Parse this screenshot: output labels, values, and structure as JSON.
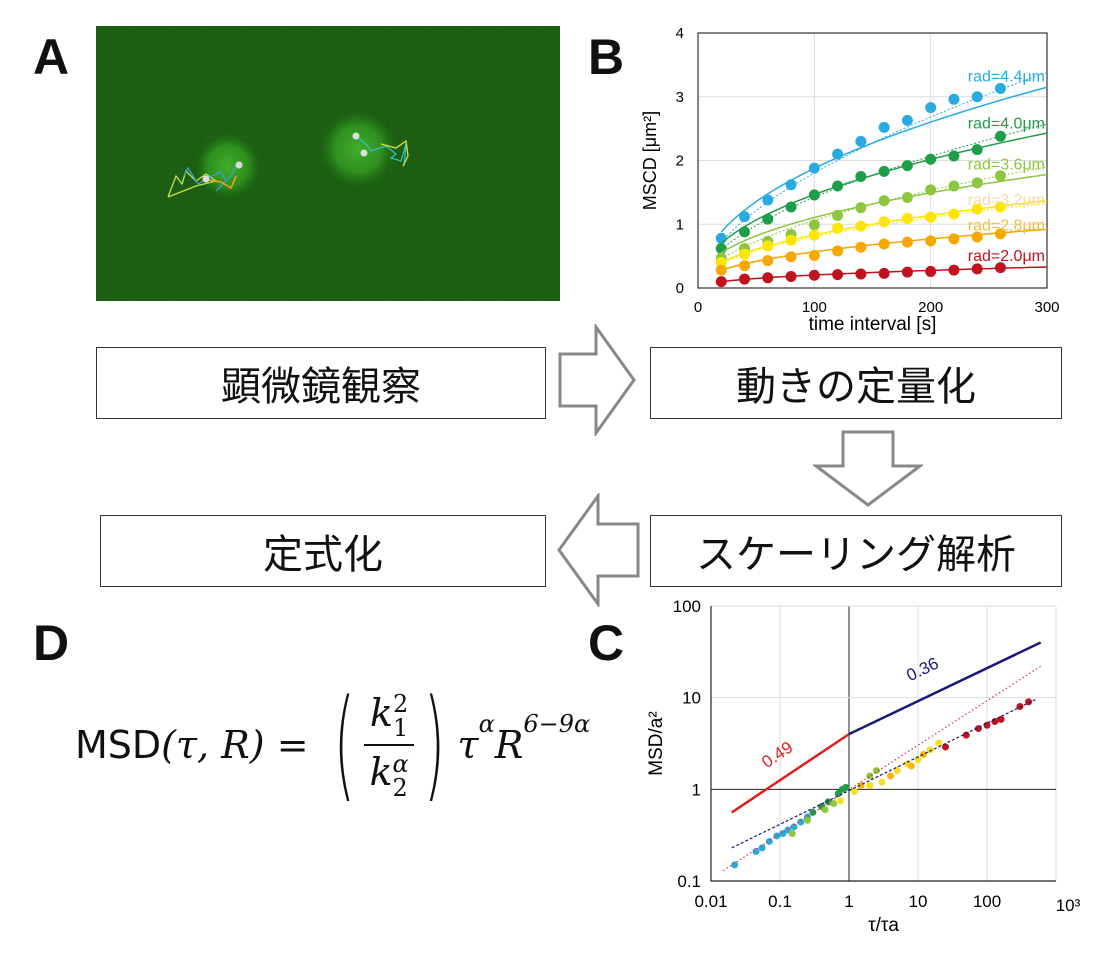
{
  "panels": {
    "a": "A",
    "b": "B",
    "c": "C",
    "d": "D"
  },
  "flow": {
    "step1": "顕微鏡観察",
    "step2": "動きの定量化",
    "step3": "スケーリング解析",
    "step4": "定式化"
  },
  "icons": {
    "arrow1": "arrow-right-icon",
    "arrow2": "arrow-down-icon",
    "arrow3": "arrow-left-icon"
  },
  "equation": {
    "lhs": "MSD",
    "args": "(τ, R)",
    "eq": " = ",
    "k1": "k",
    "k1_sub": "1",
    "k1_sup": "2",
    "k2": "k",
    "k2_sub": "2",
    "k2_sup": "α",
    "tau": "τ",
    "tau_sup": "α",
    "R": "R",
    "R_sup": "6−9α"
  },
  "chart_data": [
    {
      "type": "scatter",
      "ylabel": "MSCD [μm²]",
      "xlabel": "time interval [s]",
      "xlim": [
        0,
        300
      ],
      "ylim": [
        0,
        4
      ],
      "xticks": [
        0,
        100,
        200,
        300
      ],
      "yticks": [
        0,
        1,
        2,
        3,
        4
      ],
      "grid": true,
      "x": [
        20,
        40,
        60,
        80,
        100,
        120,
        140,
        160,
        180,
        200,
        220,
        240,
        260
      ],
      "series": [
        {
          "name": "rad=4.4μm",
          "color": "#29abe2",
          "label_color": "#29abe2",
          "values": [
            0.78,
            1.12,
            1.38,
            1.62,
            1.88,
            2.1,
            2.3,
            2.52,
            2.63,
            2.83,
            2.96,
            3.0,
            3.13
          ],
          "fit": [
            0.88,
            3.15
          ],
          "fit_dotted": [
            0.72,
            3.38
          ]
        },
        {
          "name": "rad=4.0μm",
          "color": "#1f9e4a",
          "label_color": "#1f9e4a",
          "values": [
            0.62,
            0.88,
            1.08,
            1.27,
            1.46,
            1.6,
            1.75,
            1.83,
            1.92,
            2.02,
            2.07,
            2.17,
            2.38
          ],
          "fit": [
            0.7,
            2.43
          ],
          "fit_dotted": [
            0.6,
            2.57
          ]
        },
        {
          "name": "rad=3.6μm",
          "color": "#8dc63f",
          "label_color": "#8dc63f",
          "values": [
            0.47,
            0.62,
            0.73,
            0.84,
            0.99,
            1.14,
            1.26,
            1.37,
            1.42,
            1.54,
            1.6,
            1.65,
            1.76
          ],
          "fit": [
            0.55,
            1.78
          ],
          "fit_dotted": [
            0.45,
            1.9
          ]
        },
        {
          "name": "rad=3.2μm",
          "color": "#ffe600",
          "label_color": "#f6d9a6",
          "values": [
            0.4,
            0.53,
            0.66,
            0.75,
            0.83,
            0.94,
            0.97,
            1.04,
            1.09,
            1.11,
            1.16,
            1.24,
            1.27
          ],
          "fit": [
            0.4,
            1.37
          ],
          "fit_dotted": [
            0.38,
            1.33
          ]
        },
        {
          "name": "rad=2.8μm",
          "color": "#f7a800",
          "label_color": "#f0c040",
          "values": [
            0.28,
            0.35,
            0.43,
            0.49,
            0.51,
            0.58,
            0.64,
            0.69,
            0.72,
            0.74,
            0.77,
            0.8,
            0.85
          ],
          "fit": [
            0.28,
            0.92
          ],
          "fit_dotted": [
            0.27,
            0.93
          ]
        },
        {
          "name": "rad=2.0μm",
          "color": "#c1121f",
          "label_color": "#c1121f",
          "values": [
            0.1,
            0.14,
            0.16,
            0.18,
            0.2,
            0.21,
            0.22,
            0.23,
            0.25,
            0.26,
            0.28,
            0.3,
            0.32
          ],
          "fit": [
            0.1,
            0.33
          ],
          "fit_dotted": [
            0.1,
            0.33
          ]
        }
      ]
    },
    {
      "type": "scatter",
      "scale": "log-log",
      "ylabel": "MSD/a²",
      "xlabel": "τ/τa",
      "xlim": [
        0.01,
        1000
      ],
      "ylim": [
        0.1,
        100
      ],
      "xticks": [
        "0.01",
        "0.1",
        "1",
        "10",
        "100",
        "10³"
      ],
      "yticks": [
        "0.1",
        "1",
        "10",
        "100"
      ],
      "grid": true,
      "lines": [
        {
          "label": "0.49",
          "color": "#e02020",
          "style": "solid",
          "from": [
            0.02,
            0.56
          ],
          "to": [
            1,
            4
          ]
        },
        {
          "label": "0.36",
          "color": "#1a1a7a",
          "style": "solid",
          "from": [
            1,
            4
          ],
          "to": [
            600,
            40
          ]
        },
        {
          "label": "",
          "color": "#e03030",
          "style": "dotted",
          "from": [
            0.015,
            0.13
          ],
          "to": [
            600,
            22
          ]
        },
        {
          "label": "",
          "color": "#1a1a7a",
          "style": "dashed",
          "from": [
            0.02,
            0.23
          ],
          "to": [
            500,
            9.5
          ]
        }
      ],
      "points": [
        {
          "color": "#29abe2",
          "xy": [
            [
              0.022,
              0.15
            ],
            [
              0.045,
              0.21
            ],
            [
              0.055,
              0.23
            ],
            [
              0.07,
              0.27
            ],
            [
              0.09,
              0.31
            ],
            [
              0.11,
              0.33
            ],
            [
              0.13,
              0.36
            ],
            [
              0.16,
              0.39
            ],
            [
              0.2,
              0.44
            ],
            [
              0.25,
              0.5
            ]
          ]
        },
        {
          "color": "#1f9e4a",
          "xy": [
            [
              0.3,
              0.56
            ],
            [
              0.4,
              0.65
            ],
            [
              0.5,
              0.73
            ],
            [
              0.7,
              0.9
            ],
            [
              0.8,
              1.0
            ],
            [
              0.9,
              1.05
            ]
          ]
        },
        {
          "color": "#8dc63f",
          "xy": [
            [
              0.15,
              0.33
            ],
            [
              0.25,
              0.46
            ],
            [
              0.45,
              0.6
            ],
            [
              0.6,
              0.7
            ],
            [
              2,
              1.4
            ],
            [
              2.5,
              1.6
            ]
          ]
        },
        {
          "color": "#f5e020",
          "xy": [
            [
              0.75,
              0.75
            ],
            [
              1.2,
              0.95
            ],
            [
              2,
              1.1
            ],
            [
              3,
              1.2
            ],
            [
              5,
              1.6
            ],
            [
              7,
              1.9
            ],
            [
              10,
              2.1
            ],
            [
              15,
              2.7
            ],
            [
              20,
              3.2
            ]
          ]
        },
        {
          "color": "#f7b800",
          "xy": [
            [
              1.5,
              1.1
            ],
            [
              4,
              1.4
            ],
            [
              8,
              1.8
            ],
            [
              12,
              2.4
            ]
          ]
        },
        {
          "color": "#c1121f",
          "xy": [
            [
              25,
              2.9
            ],
            [
              50,
              3.9
            ],
            [
              75,
              4.6
            ],
            [
              100,
              5
            ],
            [
              130,
              5.5
            ],
            [
              160,
              5.8
            ],
            [
              300,
              8
            ],
            [
              400,
              9
            ]
          ]
        }
      ]
    }
  ]
}
